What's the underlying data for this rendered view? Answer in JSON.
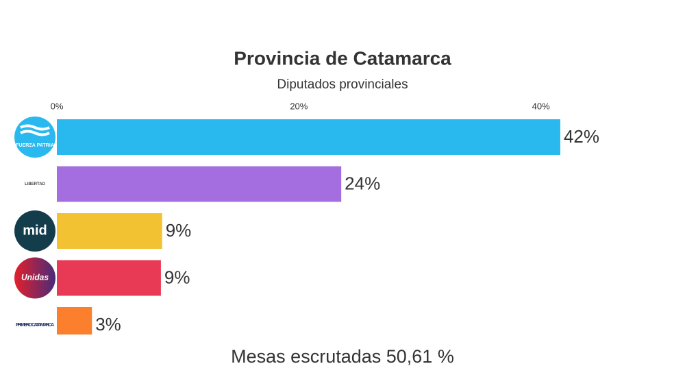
{
  "chart_data": {
    "type": "bar",
    "orientation": "horizontal",
    "title": "Provincia de Catamarca",
    "subtitle": "Diputados provinciales",
    "footer": "Mesas escrutadas 50,61 %",
    "categories": [
      "FUERZA PATRIA",
      "LIBERTAD",
      "mid",
      "Unidas",
      "PRIMERO CATAMARCA"
    ],
    "values": [
      41.6,
      23.5,
      8.7,
      8.6,
      2.9
    ],
    "value_labels": [
      "42%",
      "24%",
      "9%",
      "9%",
      "3%"
    ],
    "colors": [
      "#29b9ef",
      "#a46ee0",
      "#f2c232",
      "#e83a55",
      "#fb7f2c"
    ],
    "xlim": [
      0,
      45
    ],
    "xticks": [
      {
        "value": 0,
        "label": "0%"
      },
      {
        "value": 20,
        "label": "20%"
      },
      {
        "value": 40,
        "label": "40%"
      }
    ],
    "grid": false
  }
}
